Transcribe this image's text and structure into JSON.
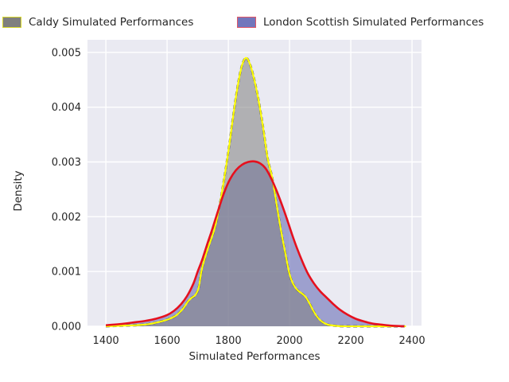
{
  "legend": {
    "items": [
      {
        "label": "Caldy Simulated Performances",
        "swatch_fill": "#7f7f7f",
        "swatch_border": "#d8d82a"
      },
      {
        "label": "London Scottish Simulated Performances",
        "swatch_fill": "#7276bc",
        "swatch_border": "#e25667"
      }
    ]
  },
  "axes": {
    "xlabel": "Simulated Performances",
    "ylabel": "Density",
    "x_ticks": [
      1400,
      1600,
      1800,
      2000,
      2200,
      2400
    ],
    "y_ticks": [
      "0.000",
      "0.001",
      "0.002",
      "0.003",
      "0.004",
      "0.005"
    ],
    "plot_bg_color": "#eaeaf2",
    "grid_color": "#ffffff"
  },
  "chart_data": {
    "type": "area",
    "title": "",
    "xlabel": "Simulated Performances",
    "ylabel": "Density",
    "xlim": [
      1340,
      2431
    ],
    "ylim": [
      0,
      0.00523
    ],
    "grid": true,
    "legend_position": "top",
    "series": [
      {
        "name": "London Scottish Simulated Performances",
        "line_color": "#e6101e",
        "fill_color": "rgba(112,117,186,0.63)",
        "peak": {
          "x": 1880,
          "density": 0.003
        },
        "points": [
          [
            1400,
            2e-05
          ],
          [
            1445,
            4e-05
          ],
          [
            1490,
            7e-05
          ],
          [
            1530,
            0.0001
          ],
          [
            1565,
            0.00014
          ],
          [
            1598,
            0.0002
          ],
          [
            1622,
            0.00028
          ],
          [
            1645,
            0.0004
          ],
          [
            1665,
            0.00055
          ],
          [
            1686,
            0.00078
          ],
          [
            1700,
            0.001
          ],
          [
            1715,
            0.00122
          ],
          [
            1730,
            0.00148
          ],
          [
            1748,
            0.00178
          ],
          [
            1766,
            0.0021
          ],
          [
            1785,
            0.00242
          ],
          [
            1805,
            0.00268
          ],
          [
            1825,
            0.00285
          ],
          [
            1845,
            0.00295
          ],
          [
            1865,
            0.003
          ],
          [
            1885,
            0.00301
          ],
          [
            1905,
            0.00297
          ],
          [
            1922,
            0.00288
          ],
          [
            1940,
            0.0027
          ],
          [
            1958,
            0.00247
          ],
          [
            1975,
            0.00222
          ],
          [
            1992,
            0.00195
          ],
          [
            2008,
            0.00168
          ],
          [
            2024,
            0.00143
          ],
          [
            2042,
            0.00118
          ],
          [
            2060,
            0.00096
          ],
          [
            2080,
            0.00078
          ],
          [
            2100,
            0.00064
          ],
          [
            2120,
            0.00053
          ],
          [
            2142,
            0.00041
          ],
          [
            2165,
            0.0003
          ],
          [
            2190,
            0.00021
          ],
          [
            2215,
            0.00014
          ],
          [
            2242,
            9e-05
          ],
          [
            2270,
            5e-05
          ],
          [
            2300,
            3e-05
          ],
          [
            2335,
            1e-05
          ],
          [
            2375,
            0
          ]
        ]
      },
      {
        "name": "Caldy Simulated Performances",
        "line_color": "#ffff00",
        "fill_color": "rgba(127,127,127,0.55)",
        "peak": {
          "x": 1858,
          "density": 0.0049
        },
        "points": [
          [
            1400,
            0
          ],
          [
            1450,
            1e-05
          ],
          [
            1500,
            2e-05
          ],
          [
            1540,
            4e-05
          ],
          [
            1575,
            8e-05
          ],
          [
            1605,
            0.00013
          ],
          [
            1630,
            0.0002
          ],
          [
            1652,
            0.00032
          ],
          [
            1668,
            0.00045
          ],
          [
            1680,
            0.00052
          ],
          [
            1692,
            0.00057
          ],
          [
            1703,
            0.0007
          ],
          [
            1712,
            0.001
          ],
          [
            1722,
            0.00122
          ],
          [
            1737,
            0.00148
          ],
          [
            1755,
            0.00178
          ],
          [
            1772,
            0.00222
          ],
          [
            1788,
            0.00275
          ],
          [
            1803,
            0.0033
          ],
          [
            1818,
            0.00392
          ],
          [
            1832,
            0.00443
          ],
          [
            1845,
            0.00477
          ],
          [
            1858,
            0.0049
          ],
          [
            1871,
            0.00478
          ],
          [
            1884,
            0.00452
          ],
          [
            1898,
            0.00415
          ],
          [
            1913,
            0.00365
          ],
          [
            1928,
            0.00308
          ],
          [
            1943,
            0.00272
          ],
          [
            1957,
            0.00225
          ],
          [
            1971,
            0.00178
          ],
          [
            1985,
            0.00137
          ],
          [
            2000,
            0.00095
          ],
          [
            2013,
            0.00076
          ],
          [
            2026,
            0.00066
          ],
          [
            2040,
            0.0006
          ],
          [
            2052,
            0.00054
          ],
          [
            2065,
            0.00042
          ],
          [
            2078,
            0.00028
          ],
          [
            2092,
            0.00016
          ],
          [
            2107,
            8e-05
          ],
          [
            2125,
            3e-05
          ],
          [
            2150,
            1e-05
          ],
          [
            2190,
            0
          ],
          [
            2380,
            0
          ]
        ]
      }
    ]
  }
}
